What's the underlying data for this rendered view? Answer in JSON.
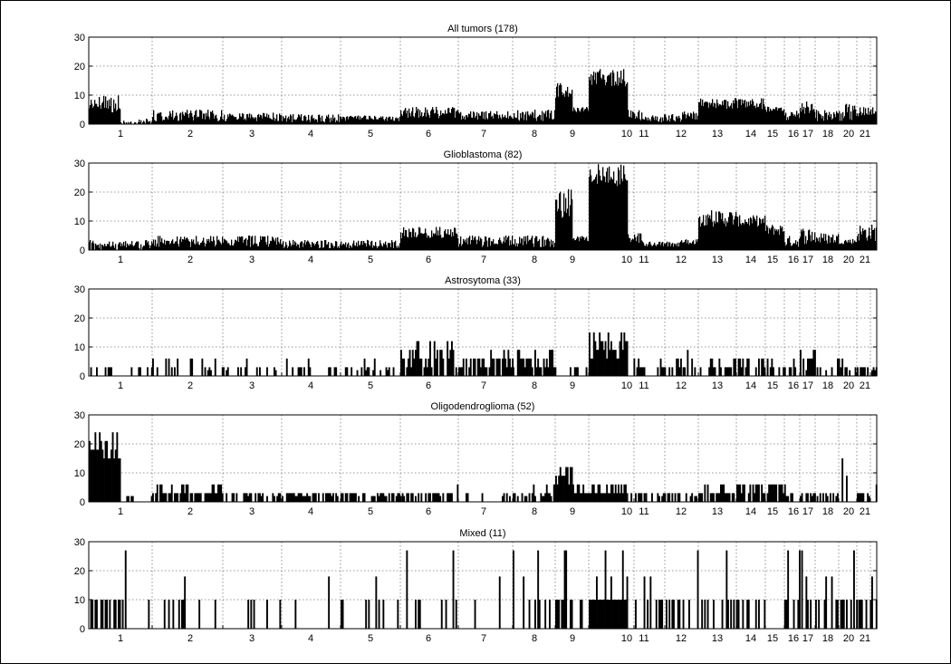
{
  "chart_data": [
    {
      "type": "bar",
      "title": "All tumors (178)",
      "ylim": [
        0,
        30
      ],
      "yticks": [
        0,
        10,
        20,
        30
      ],
      "chromosome_labels": [
        "1",
        "2",
        "3",
        "4",
        "5",
        "6",
        "7",
        "8",
        "9",
        "10",
        "11",
        "12",
        "13",
        "14",
        "15",
        "16",
        "17",
        "18",
        "20",
        "21"
      ],
      "grid": true,
      "regions": [
        {
          "chrom": "1",
          "from": 0.0,
          "to": 0.08,
          "level": 7.5
        },
        {
          "chrom": "1",
          "from": 0.08,
          "to": 0.16,
          "level": 1.2
        },
        {
          "chrom": "2",
          "from": 0.16,
          "to": 0.32,
          "level": 2.5
        },
        {
          "chrom": "3",
          "from": 0.32,
          "to": 0.44,
          "level": 2.0
        },
        {
          "chrom": "4",
          "from": 0.44,
          "to": 0.56,
          "level": 1.5
        },
        {
          "chrom": "5",
          "from": 0.56,
          "to": 0.62,
          "level": 2.0
        },
        {
          "chrom": "6",
          "from": 0.62,
          "to": 0.68,
          "level": 4.0
        },
        {
          "chrom": "7",
          "from": 0.68,
          "to": 0.74,
          "level": 2.5
        },
        {
          "chrom": "8",
          "from": 0.74,
          "to": 0.79,
          "level": 3.0
        },
        {
          "chrom": "9",
          "from": 0.79,
          "to": 0.83,
          "level": 13.0
        },
        {
          "chrom": "10",
          "from": 0.83,
          "to": 0.91,
          "level": 16.0
        },
        {
          "chrom": "11",
          "from": 0.91,
          "to": 0.96,
          "level": 2.0
        },
        {
          "chrom": "12",
          "from": 0.96,
          "to": 1.0,
          "level": 3.0
        }
      ]
    },
    {
      "type": "bar",
      "title": "Glioblastoma (82)",
      "ylim": [
        0,
        30
      ],
      "yticks": [
        0,
        10,
        20,
        30
      ],
      "chromosome_labels": [
        "1",
        "2",
        "3",
        "4",
        "5",
        "6",
        "7",
        "8",
        "9",
        "10",
        "11",
        "12",
        "13",
        "14",
        "15",
        "16",
        "17",
        "18",
        "20",
        "21"
      ],
      "grid": true
    },
    {
      "type": "bar",
      "title": "Astrosytoma (33)",
      "ylim": [
        0,
        30
      ],
      "yticks": [
        0,
        10,
        20,
        30
      ],
      "chromosome_labels": [
        "1",
        "2",
        "3",
        "4",
        "5",
        "6",
        "7",
        "8",
        "9",
        "10",
        "11",
        "12",
        "13",
        "14",
        "15",
        "16",
        "17",
        "18",
        "20",
        "21"
      ],
      "grid": true
    },
    {
      "type": "bar",
      "title": "Oligodendroglioma (52)",
      "ylim": [
        0,
        30
      ],
      "yticks": [
        0,
        10,
        20,
        30
      ],
      "chromosome_labels": [
        "1",
        "2",
        "3",
        "4",
        "5",
        "6",
        "7",
        "8",
        "9",
        "10",
        "11",
        "12",
        "13",
        "14",
        "15",
        "16",
        "17",
        "18",
        "20",
        "21"
      ],
      "grid": true
    },
    {
      "type": "bar",
      "title": "Mixed (11)",
      "ylim": [
        0,
        30
      ],
      "yticks": [
        0,
        10,
        20,
        30
      ],
      "chromosome_labels": [
        "1",
        "2",
        "3",
        "4",
        "5",
        "6",
        "7",
        "8",
        "9",
        "10",
        "11",
        "12",
        "13",
        "14",
        "15",
        "16",
        "17",
        "18",
        "20",
        "21"
      ],
      "grid": true
    }
  ]
}
